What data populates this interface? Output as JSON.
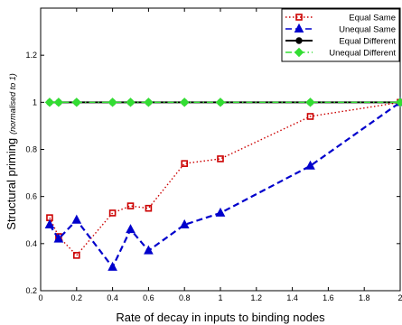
{
  "chart_data": {
    "type": "line",
    "xlabel": "Rate of decay in inputs to binding nodes",
    "ylabel": "Structural priming",
    "ylabel_note": "(normalised to 1)",
    "xlim": [
      0,
      2
    ],
    "ylim": [
      0.2,
      1.4
    ],
    "xticks": [
      0,
      0.2,
      0.4,
      0.6,
      0.8,
      1,
      1.2,
      1.4,
      1.6,
      1.8,
      2
    ],
    "xtick_labels": [
      "0",
      "0.2",
      "0.4",
      "0.6",
      "0.8",
      "1",
      "1.2",
      "1.4",
      "1.6",
      "1.8",
      "2"
    ],
    "yticks": [
      0.2,
      0.4,
      0.6,
      0.8,
      1,
      1.2
    ],
    "ytick_labels": [
      "0.2",
      "0.4",
      "0.6",
      "0.8",
      "1",
      "1.2"
    ],
    "grid": false,
    "legend_position": "top-right",
    "x": [
      0.05,
      0.1,
      0.2,
      0.4,
      0.5,
      0.6,
      0.8,
      1.0,
      1.5,
      2.0
    ],
    "series": [
      {
        "name": "Equal Same",
        "color": "#cc0000",
        "dash": "dotted",
        "marker": "square",
        "values": [
          0.51,
          0.43,
          0.35,
          0.53,
          0.56,
          0.55,
          0.74,
          0.76,
          0.94,
          1.0
        ]
      },
      {
        "name": "Unequal Same",
        "color": "#0000cc",
        "dash": "dashed",
        "marker": "triangle",
        "values": [
          0.48,
          0.42,
          0.5,
          0.3,
          0.46,
          0.37,
          0.48,
          0.53,
          0.73,
          1.0
        ]
      },
      {
        "name": "Equal Different",
        "color": "#000000",
        "dash": "solid",
        "marker": "circle",
        "values": [
          1.0,
          1.0,
          1.0,
          1.0,
          1.0,
          1.0,
          1.0,
          1.0,
          1.0,
          1.0
        ]
      },
      {
        "name": "Unequal Different",
        "color": "#33dd33",
        "dash": "dashdot",
        "marker": "diamond",
        "values": [
          1.0,
          1.0,
          1.0,
          1.0,
          1.0,
          1.0,
          1.0,
          1.0,
          1.0,
          1.0
        ]
      }
    ]
  }
}
